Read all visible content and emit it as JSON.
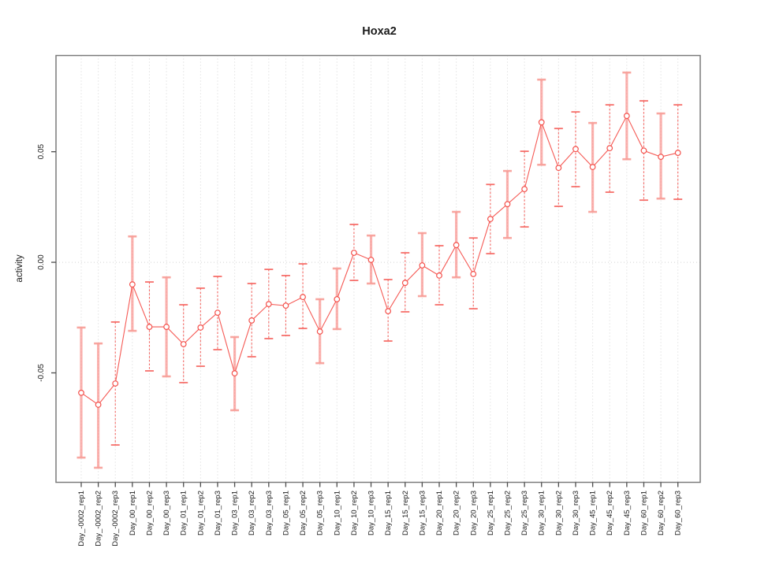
{
  "window": {
    "background": "#ffffff"
  },
  "chart_data": {
    "type": "scatter",
    "title": "Hoxa2",
    "xlabel": "",
    "ylabel": "activity",
    "legend_position": "none",
    "ylim": [
      -0.0995,
      0.0935
    ],
    "yticks": [
      {
        "value": 0.05,
        "label": "0.05"
      },
      {
        "value": 0.0,
        "label": "0.00"
      },
      {
        "value": -0.05,
        "label": "-0.05"
      }
    ],
    "grid": {
      "vertical_dotted_per_category": true,
      "horizontal_dotted_at_zero": true
    },
    "colors": {
      "series": "#f4514c",
      "band": "#f9837d",
      "cap_pale": "#f89d96",
      "cap_bright": "#f6615c",
      "grid": "#d4d4d4",
      "frame": "#7a7a7a",
      "tick": "#4d4d4d"
    },
    "points": [
      {
        "label": "Day_-0002_rep1",
        "y": -0.059,
        "lo": -0.0883,
        "hi": -0.0295,
        "band": true
      },
      {
        "label": "Day_-0002_rep2",
        "y": -0.0644,
        "lo": -0.0929,
        "hi": -0.0367,
        "band": true
      },
      {
        "label": "Day_-0002_rep3",
        "y": -0.0548,
        "lo": -0.0826,
        "hi": -0.027,
        "band": false
      },
      {
        "label": "Day_00_rep1",
        "y": -0.01,
        "lo": -0.031,
        "hi": 0.0117,
        "band": true
      },
      {
        "label": "Day_00_rep2",
        "y": -0.0292,
        "lo": -0.0491,
        "hi": -0.0089,
        "band": false
      },
      {
        "label": "Day_00_rep3",
        "y": -0.0292,
        "lo": -0.0516,
        "hi": -0.0068,
        "band": true
      },
      {
        "label": "Day_01_rep1",
        "y": -0.037,
        "lo": -0.0544,
        "hi": -0.0192,
        "band": false
      },
      {
        "label": "Day_01_rep2",
        "y": -0.0295,
        "lo": -0.047,
        "hi": -0.0117,
        "band": false
      },
      {
        "label": "Day_01_rep3",
        "y": -0.0228,
        "lo": -0.0395,
        "hi": -0.0064,
        "band": false
      },
      {
        "label": "Day_03_rep1",
        "y": -0.0502,
        "lo": -0.0669,
        "hi": -0.0338,
        "band": true
      },
      {
        "label": "Day_03_rep2",
        "y": -0.0263,
        "lo": -0.0427,
        "hi": -0.0096,
        "band": false
      },
      {
        "label": "Day_03_rep3",
        "y": -0.0189,
        "lo": -0.0345,
        "hi": -0.0032,
        "band": false
      },
      {
        "label": "Day_05_rep1",
        "y": -0.0196,
        "lo": -0.0331,
        "hi": -0.006,
        "band": false
      },
      {
        "label": "Day_05_rep2",
        "y": -0.0157,
        "lo": -0.0299,
        "hi": -0.0007,
        "band": false
      },
      {
        "label": "Day_05_rep3",
        "y": -0.0313,
        "lo": -0.0456,
        "hi": -0.0167,
        "band": true
      },
      {
        "label": "Day_10_rep1",
        "y": -0.0167,
        "lo": -0.0302,
        "hi": -0.0028,
        "band": true
      },
      {
        "label": "Day_10_rep2",
        "y": 0.0043,
        "lo": -0.0082,
        "hi": 0.0171,
        "band": false
      },
      {
        "label": "Day_10_rep3",
        "y": 0.0011,
        "lo": -0.0096,
        "hi": 0.0121,
        "band": true
      },
      {
        "label": "Day_15_rep1",
        "y": -0.0221,
        "lo": -0.0356,
        "hi": -0.0078,
        "band": false
      },
      {
        "label": "Day_15_rep2",
        "y": -0.0093,
        "lo": -0.0224,
        "hi": 0.0043,
        "band": false
      },
      {
        "label": "Day_15_rep3",
        "y": -0.0014,
        "lo": -0.0153,
        "hi": 0.0132,
        "band": true
      },
      {
        "label": "Day_20_rep1",
        "y": -0.006,
        "lo": -0.0192,
        "hi": 0.0075,
        "band": false
      },
      {
        "label": "Day_20_rep2",
        "y": 0.0078,
        "lo": -0.0068,
        "hi": 0.0228,
        "band": true
      },
      {
        "label": "Day_20_rep3",
        "y": -0.0053,
        "lo": -0.021,
        "hi": 0.011,
        "band": false
      },
      {
        "label": "Day_25_rep1",
        "y": 0.0196,
        "lo": 0.0039,
        "hi": 0.0352,
        "band": false
      },
      {
        "label": "Day_25_rep2",
        "y": 0.0263,
        "lo": 0.011,
        "hi": 0.0413,
        "band": true
      },
      {
        "label": "Day_25_rep3",
        "y": 0.0331,
        "lo": 0.016,
        "hi": 0.0502,
        "band": false
      },
      {
        "label": "Day_30_rep1",
        "y": 0.0633,
        "lo": 0.0441,
        "hi": 0.0826,
        "band": true
      },
      {
        "label": "Day_30_rep2",
        "y": 0.0427,
        "lo": 0.0253,
        "hi": 0.0605,
        "band": false
      },
      {
        "label": "Day_30_rep3",
        "y": 0.0512,
        "lo": 0.0342,
        "hi": 0.068,
        "band": false
      },
      {
        "label": "Day_45_rep1",
        "y": 0.0431,
        "lo": 0.0228,
        "hi": 0.063,
        "band": true
      },
      {
        "label": "Day_45_rep2",
        "y": 0.0516,
        "lo": 0.0317,
        "hi": 0.0712,
        "band": false
      },
      {
        "label": "Day_45_rep3",
        "y": 0.0662,
        "lo": 0.0466,
        "hi": 0.0858,
        "band": true
      },
      {
        "label": "Day_60_rep1",
        "y": 0.0505,
        "lo": 0.0281,
        "hi": 0.073,
        "band": false
      },
      {
        "label": "Day_60_rep2",
        "y": 0.0477,
        "lo": 0.0288,
        "hi": 0.0673,
        "band": true
      },
      {
        "label": "Day_60_rep3",
        "y": 0.0495,
        "lo": 0.0285,
        "hi": 0.0712,
        "band": false
      }
    ]
  }
}
